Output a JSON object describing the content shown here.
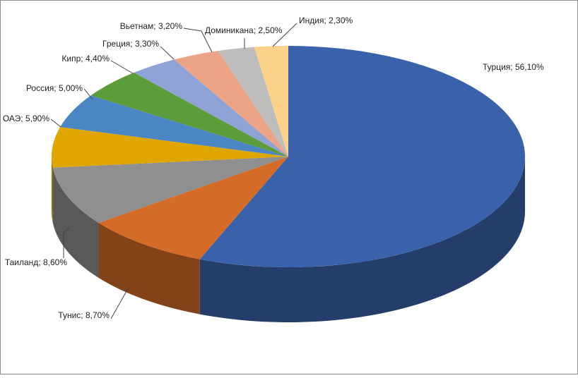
{
  "chart_data": {
    "type": "pie",
    "categories": [
      "Турция",
      "Тунис",
      "Таиланд",
      "ОАЭ",
      "Россия",
      "Кипр",
      "Греция",
      "Вьетнам",
      "Доминикана",
      "Индия"
    ],
    "values": [
      56.1,
      8.7,
      8.6,
      5.9,
      5.0,
      4.4,
      3.3,
      3.2,
      2.5,
      2.3
    ],
    "value_labels": [
      "56,10%",
      "8,70%",
      "8,60%",
      "5,90%",
      "5,00%",
      "4,40%",
      "3,30%",
      "3,20%",
      "2,50%",
      "2,30%"
    ],
    "label_separator": "; ",
    "colors": [
      "#3a62ab",
      "#d46b27",
      "#8f8f8f",
      "#e0a600",
      "#4a86c4",
      "#5c9c3a",
      "#8fa3d6",
      "#eda386",
      "#bdbdbd",
      "#fcd28a"
    ]
  }
}
